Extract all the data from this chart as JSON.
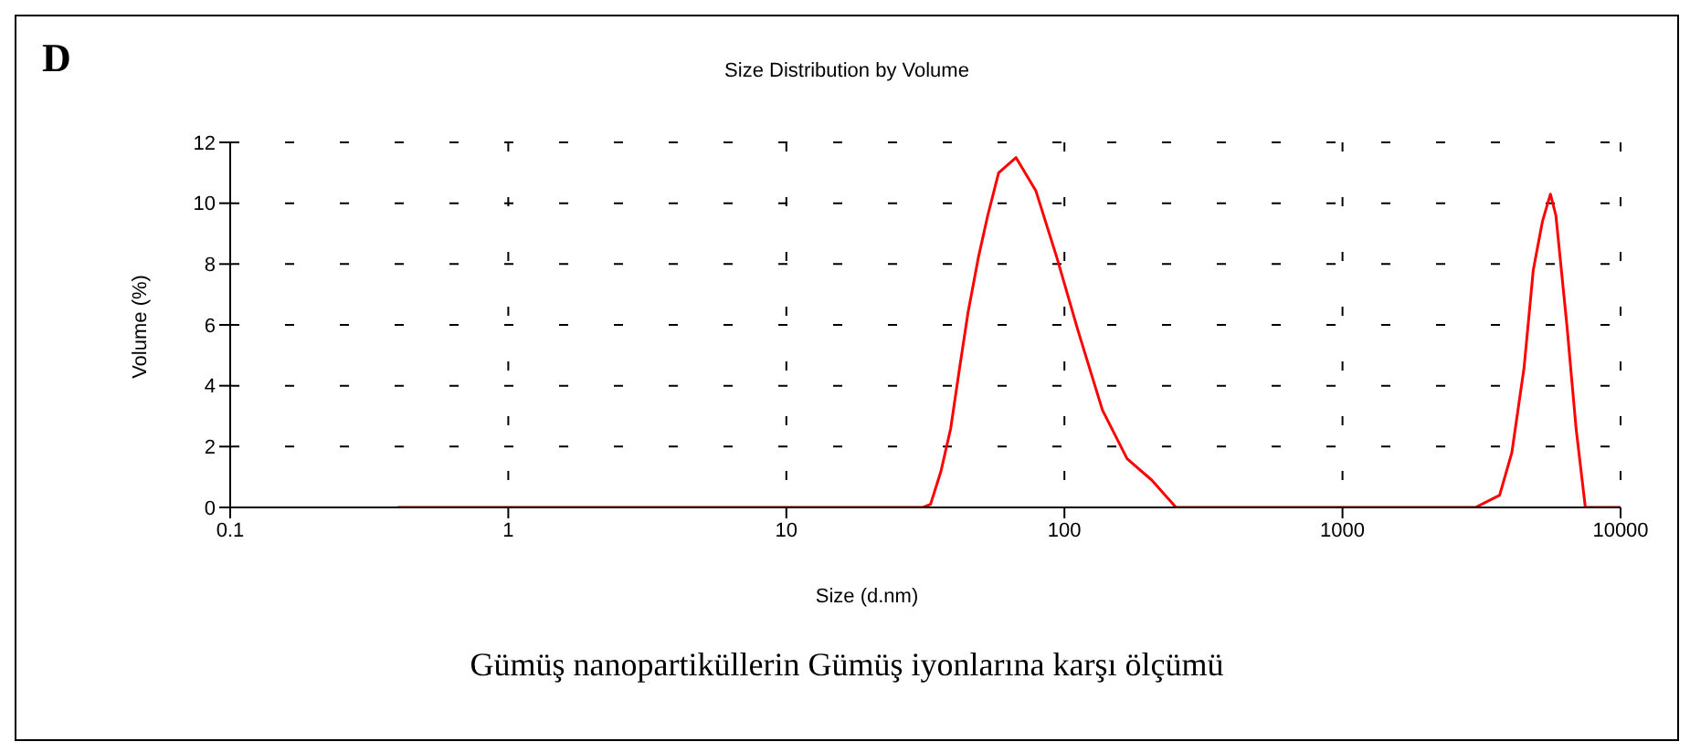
{
  "chart_data": {
    "type": "line",
    "title": "Size Distribution by Volume",
    "xlabel": "Size (d.nm)",
    "ylabel": "Volume (%)",
    "annotations": [
      "D",
      "Gümüş nanopartiküllerin Gümüş iyonlarına karşı ölçümü"
    ],
    "log": "x",
    "grid": true,
    "marker": "none",
    "line_style": "solid",
    "xlim": [
      0.1,
      10000
    ],
    "xticks": [
      0.1,
      1,
      10,
      100,
      1000,
      10000
    ],
    "ylim": [
      0,
      12
    ],
    "yticks": [
      0,
      2,
      4,
      6,
      8,
      10,
      12
    ],
    "series": [
      {
        "color": "#ff0000",
        "x": [
          0.4,
          31,
          33,
          36,
          39,
          42,
          45,
          49,
          53,
          58,
          67,
          79,
          94,
          112,
          137,
          168,
          206,
          252,
          3006,
          3673,
          4064,
          4498,
          4853,
          5236,
          5594,
          5853,
          6410,
          6918,
          7470,
          10000
        ],
        "values": [
          0,
          0,
          0.1,
          1.2,
          2.6,
          4.6,
          6.4,
          8.2,
          9.6,
          11.0,
          11.5,
          10.4,
          8.2,
          5.8,
          3.2,
          1.6,
          0.9,
          0,
          0,
          0.4,
          1.8,
          4.6,
          7.8,
          9.4,
          10.3,
          9.6,
          6.0,
          2.6,
          0,
          0
        ]
      }
    ]
  }
}
